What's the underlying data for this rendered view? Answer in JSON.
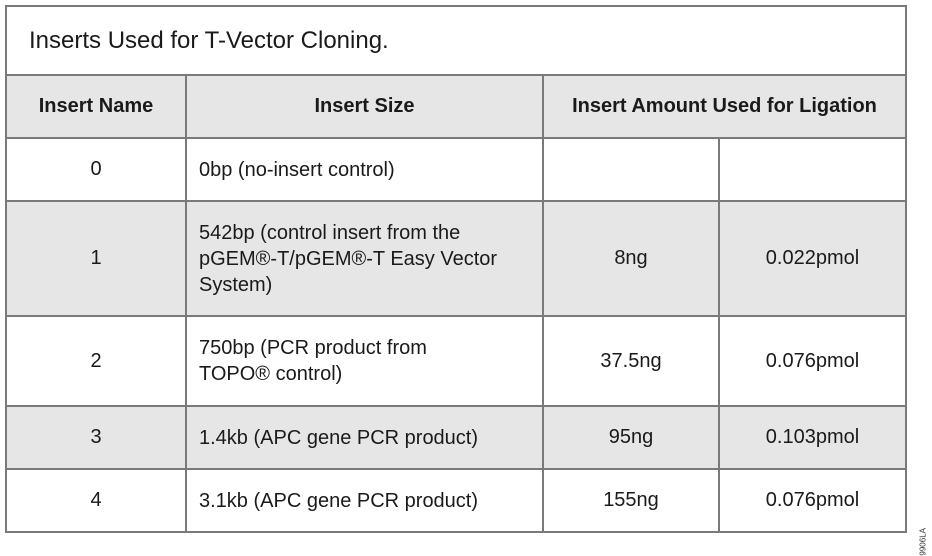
{
  "title": "Inserts Used for T-Vector Cloning.",
  "headers": [
    "Insert Name",
    "Insert Size",
    "Insert Amount Used for Ligation"
  ],
  "rows": [
    {
      "name": "0",
      "size": [
        "0bp (no-insert control)"
      ],
      "ng": "",
      "pmol": ""
    },
    {
      "name": "1",
      "size": [
        "542bp (control insert from the",
        "pGEM®-T/pGEM®-T Easy Vector",
        "System)"
      ],
      "ng": "8ng",
      "pmol": "0.022pmol"
    },
    {
      "name": "2",
      "size": [
        "750bp (PCR product from",
        "TOPO® control)"
      ],
      "ng": "37.5ng",
      "pmol": "0.076pmol"
    },
    {
      "name": "3",
      "size": [
        "1.4kb (APC gene PCR product)"
      ],
      "ng": "95ng",
      "pmol": "0.103pmol"
    },
    {
      "name": "4",
      "size": [
        "3.1kb (APC gene PCR product)"
      ],
      "ng": "155ng",
      "pmol": "0.076pmol"
    }
  ],
  "figure_code": "9906LA"
}
